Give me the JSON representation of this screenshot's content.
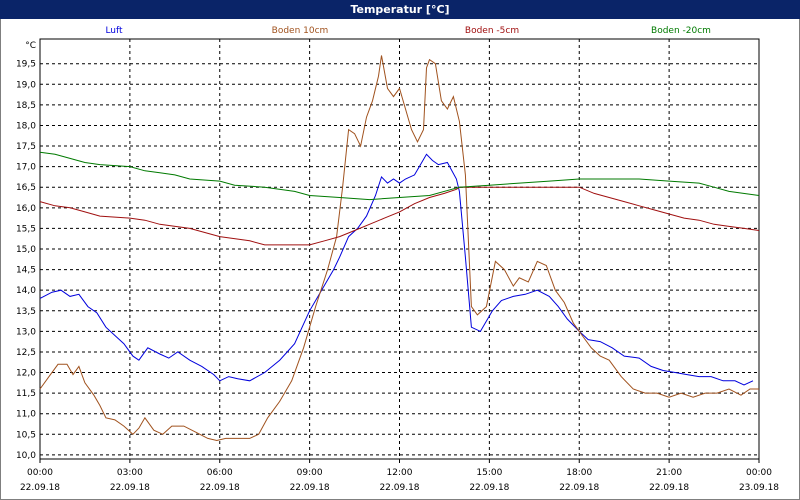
{
  "window": {
    "title": "Temperatur [°C]",
    "title_bg": "#0a2468"
  },
  "chart_data": {
    "type": "line",
    "title": "Temperatur [°C]",
    "ylabel": "°C",
    "ylim": [
      9.9,
      20.1
    ],
    "yticks": [
      "10,0",
      "10,5",
      "11,0",
      "11,5",
      "12,0",
      "12,5",
      "13,0",
      "13,5",
      "14,0",
      "14,5",
      "15,0",
      "15,5",
      "16,0",
      "16,5",
      "17,0",
      "17,5",
      "18,0",
      "18,5",
      "19,0",
      "19,5"
    ],
    "xlim": [
      0,
      24
    ],
    "xticks": [
      {
        "time": "00:00",
        "date": "22.09.18"
      },
      {
        "time": "03:00",
        "date": "22.09.18"
      },
      {
        "time": "06:00",
        "date": "22.09.18"
      },
      {
        "time": "09:00",
        "date": "22.09.18"
      },
      {
        "time": "12:00",
        "date": "22.09.18"
      },
      {
        "time": "15:00",
        "date": "22.09.18"
      },
      {
        "time": "18:00",
        "date": "22.09.18"
      },
      {
        "time": "21:00",
        "date": "22.09.18"
      },
      {
        "time": "00:00",
        "date": "23.09.18"
      }
    ],
    "grid": true,
    "legend_position": "top",
    "series": [
      {
        "name": "Luft",
        "color": "#0000dd",
        "points": [
          [
            0,
            13.8
          ],
          [
            0.4,
            13.95
          ],
          [
            0.7,
            14.0
          ],
          [
            1.0,
            13.85
          ],
          [
            1.3,
            13.9
          ],
          [
            1.6,
            13.6
          ],
          [
            1.9,
            13.45
          ],
          [
            2.2,
            13.1
          ],
          [
            2.5,
            12.9
          ],
          [
            2.8,
            12.7
          ],
          [
            3.1,
            12.4
          ],
          [
            3.3,
            12.3
          ],
          [
            3.6,
            12.6
          ],
          [
            4.0,
            12.45
          ],
          [
            4.3,
            12.35
          ],
          [
            4.6,
            12.5
          ],
          [
            5.0,
            12.3
          ],
          [
            5.4,
            12.15
          ],
          [
            5.8,
            11.95
          ],
          [
            6.0,
            11.8
          ],
          [
            6.3,
            11.9
          ],
          [
            6.6,
            11.85
          ],
          [
            7.0,
            11.8
          ],
          [
            7.5,
            12.0
          ],
          [
            8.0,
            12.3
          ],
          [
            8.5,
            12.7
          ],
          [
            9.0,
            13.5
          ],
          [
            9.4,
            14.0
          ],
          [
            9.8,
            14.5
          ],
          [
            10.0,
            14.8
          ],
          [
            10.3,
            15.3
          ],
          [
            10.6,
            15.5
          ],
          [
            10.9,
            15.8
          ],
          [
            11.2,
            16.3
          ],
          [
            11.4,
            16.75
          ],
          [
            11.6,
            16.6
          ],
          [
            11.8,
            16.7
          ],
          [
            12.0,
            16.6
          ],
          [
            12.2,
            16.7
          ],
          [
            12.5,
            16.8
          ],
          [
            12.7,
            17.05
          ],
          [
            12.9,
            17.3
          ],
          [
            13.1,
            17.15
          ],
          [
            13.3,
            17.05
          ],
          [
            13.6,
            17.1
          ],
          [
            13.9,
            16.7
          ],
          [
            14.0,
            16.4
          ],
          [
            14.2,
            14.8
          ],
          [
            14.4,
            13.1
          ],
          [
            14.7,
            13.0
          ],
          [
            15.1,
            13.5
          ],
          [
            15.4,
            13.75
          ],
          [
            15.8,
            13.85
          ],
          [
            16.2,
            13.9
          ],
          [
            16.6,
            14.0
          ],
          [
            17.0,
            13.85
          ],
          [
            17.3,
            13.6
          ],
          [
            17.6,
            13.3
          ],
          [
            18.0,
            13.0
          ],
          [
            18.3,
            12.8
          ],
          [
            18.7,
            12.75
          ],
          [
            19.1,
            12.6
          ],
          [
            19.5,
            12.4
          ],
          [
            20.0,
            12.35
          ],
          [
            20.4,
            12.15
          ],
          [
            20.8,
            12.05
          ],
          [
            21.2,
            12.0
          ],
          [
            21.6,
            11.95
          ],
          [
            22.0,
            11.9
          ],
          [
            22.4,
            11.9
          ],
          [
            22.8,
            11.8
          ],
          [
            23.2,
            11.8
          ],
          [
            23.5,
            11.7
          ],
          [
            23.8,
            11.8
          ]
        ]
      },
      {
        "name": "Boden 10cm",
        "color": "#a0521e",
        "points": [
          [
            0,
            11.6
          ],
          [
            0.3,
            11.9
          ],
          [
            0.6,
            12.2
          ],
          [
            0.9,
            12.2
          ],
          [
            1.1,
            11.95
          ],
          [
            1.3,
            12.15
          ],
          [
            1.5,
            11.75
          ],
          [
            1.8,
            11.45
          ],
          [
            2.0,
            11.2
          ],
          [
            2.2,
            10.9
          ],
          [
            2.5,
            10.85
          ],
          [
            2.8,
            10.7
          ],
          [
            3.1,
            10.5
          ],
          [
            3.3,
            10.65
          ],
          [
            3.5,
            10.9
          ],
          [
            3.8,
            10.6
          ],
          [
            4.1,
            10.5
          ],
          [
            4.4,
            10.7
          ],
          [
            4.8,
            10.7
          ],
          [
            5.2,
            10.55
          ],
          [
            5.6,
            10.4
          ],
          [
            5.9,
            10.35
          ],
          [
            6.2,
            10.4
          ],
          [
            6.6,
            10.4
          ],
          [
            7.0,
            10.4
          ],
          [
            7.3,
            10.5
          ],
          [
            7.6,
            10.9
          ],
          [
            8.0,
            11.3
          ],
          [
            8.4,
            11.8
          ],
          [
            8.8,
            12.6
          ],
          [
            9.2,
            13.6
          ],
          [
            9.6,
            14.5
          ],
          [
            9.9,
            15.3
          ],
          [
            10.1,
            16.5
          ],
          [
            10.3,
            17.9
          ],
          [
            10.5,
            17.8
          ],
          [
            10.7,
            17.5
          ],
          [
            10.9,
            18.2
          ],
          [
            11.1,
            18.6
          ],
          [
            11.3,
            19.2
          ],
          [
            11.4,
            19.7
          ],
          [
            11.6,
            18.9
          ],
          [
            11.8,
            18.7
          ],
          [
            12.0,
            18.9
          ],
          [
            12.2,
            18.4
          ],
          [
            12.4,
            17.9
          ],
          [
            12.6,
            17.6
          ],
          [
            12.8,
            17.9
          ],
          [
            12.9,
            19.4
          ],
          [
            13.0,
            19.6
          ],
          [
            13.2,
            19.5
          ],
          [
            13.4,
            18.6
          ],
          [
            13.6,
            18.4
          ],
          [
            13.8,
            18.7
          ],
          [
            14.0,
            18.1
          ],
          [
            14.2,
            16.8
          ],
          [
            14.4,
            13.6
          ],
          [
            14.6,
            13.4
          ],
          [
            14.9,
            13.6
          ],
          [
            15.2,
            14.7
          ],
          [
            15.5,
            14.5
          ],
          [
            15.8,
            14.1
          ],
          [
            16.0,
            14.3
          ],
          [
            16.3,
            14.2
          ],
          [
            16.6,
            14.7
          ],
          [
            16.9,
            14.6
          ],
          [
            17.2,
            14.0
          ],
          [
            17.5,
            13.7
          ],
          [
            17.8,
            13.2
          ],
          [
            18.1,
            12.9
          ],
          [
            18.4,
            12.6
          ],
          [
            18.7,
            12.4
          ],
          [
            19.0,
            12.3
          ],
          [
            19.4,
            11.9
          ],
          [
            19.8,
            11.6
          ],
          [
            20.2,
            11.5
          ],
          [
            20.6,
            11.5
          ],
          [
            21.0,
            11.4
          ],
          [
            21.4,
            11.5
          ],
          [
            21.8,
            11.4
          ],
          [
            22.2,
            11.5
          ],
          [
            22.6,
            11.5
          ],
          [
            23.0,
            11.6
          ],
          [
            23.4,
            11.45
          ],
          [
            23.7,
            11.6
          ],
          [
            24.0,
            11.6
          ]
        ]
      },
      {
        "name": "Boden -5cm",
        "color": "#a01010",
        "points": [
          [
            0,
            16.15
          ],
          [
            0.5,
            16.05
          ],
          [
            1.0,
            16.0
          ],
          [
            1.5,
            15.9
          ],
          [
            2.0,
            15.8
          ],
          [
            3.0,
            15.75
          ],
          [
            3.5,
            15.7
          ],
          [
            4.0,
            15.6
          ],
          [
            5.0,
            15.5
          ],
          [
            5.5,
            15.4
          ],
          [
            6.0,
            15.3
          ],
          [
            7.0,
            15.2
          ],
          [
            7.5,
            15.1
          ],
          [
            9.0,
            15.1
          ],
          [
            9.5,
            15.2
          ],
          [
            10.0,
            15.3
          ],
          [
            10.5,
            15.45
          ],
          [
            11.0,
            15.6
          ],
          [
            11.5,
            15.75
          ],
          [
            12.0,
            15.9
          ],
          [
            12.5,
            16.1
          ],
          [
            13.0,
            16.25
          ],
          [
            13.5,
            16.35
          ],
          [
            13.9,
            16.45
          ],
          [
            14.0,
            16.5
          ],
          [
            15.0,
            16.5
          ],
          [
            17.0,
            16.5
          ],
          [
            17.5,
            16.5
          ],
          [
            18.0,
            16.5
          ],
          [
            18.5,
            16.35
          ],
          [
            19.0,
            16.25
          ],
          [
            19.5,
            16.15
          ],
          [
            20.0,
            16.05
          ],
          [
            20.5,
            15.95
          ],
          [
            21.0,
            15.85
          ],
          [
            21.5,
            15.75
          ],
          [
            22.0,
            15.7
          ],
          [
            22.5,
            15.6
          ],
          [
            23.0,
            15.55
          ],
          [
            23.5,
            15.5
          ],
          [
            24.0,
            15.45
          ]
        ]
      },
      {
        "name": "Boden -20cm",
        "color": "#007a00",
        "points": [
          [
            0,
            17.35
          ],
          [
            0.5,
            17.3
          ],
          [
            1.0,
            17.2
          ],
          [
            1.5,
            17.1
          ],
          [
            2.0,
            17.05
          ],
          [
            3.0,
            17.0
          ],
          [
            3.5,
            16.9
          ],
          [
            4.0,
            16.85
          ],
          [
            4.5,
            16.8
          ],
          [
            5.0,
            16.7
          ],
          [
            6.0,
            16.65
          ],
          [
            6.5,
            16.55
          ],
          [
            7.5,
            16.5
          ],
          [
            8.5,
            16.4
          ],
          [
            9.0,
            16.3
          ],
          [
            10.0,
            16.25
          ],
          [
            11.0,
            16.2
          ],
          [
            12.0,
            16.25
          ],
          [
            13.0,
            16.3
          ],
          [
            14.0,
            16.5
          ],
          [
            15.0,
            16.55
          ],
          [
            16.0,
            16.6
          ],
          [
            17.0,
            16.65
          ],
          [
            18.0,
            16.7
          ],
          [
            19.5,
            16.7
          ],
          [
            20.0,
            16.7
          ],
          [
            21.0,
            16.65
          ],
          [
            22.0,
            16.6
          ],
          [
            22.5,
            16.5
          ],
          [
            23.0,
            16.4
          ],
          [
            24.0,
            16.3
          ]
        ]
      }
    ]
  }
}
